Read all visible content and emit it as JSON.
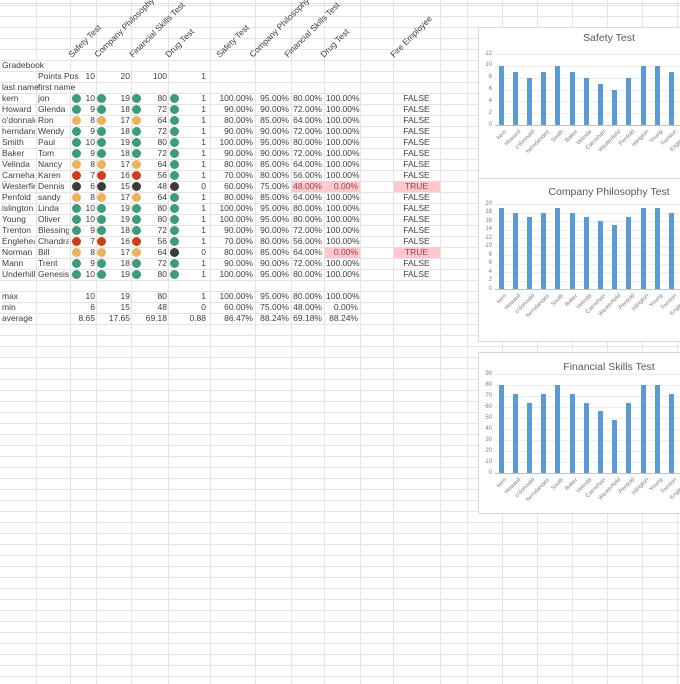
{
  "sheet": {
    "title": "Gradebook",
    "points_row_label": "Points Pos",
    "name_headers": [
      "last name",
      "first name"
    ],
    "test_headers": [
      "Safety Test",
      "Company Philosophy Test",
      "Financial Skills Test",
      "Drug Test"
    ],
    "pct_headers": [
      "Safety Test",
      "Company Philosophy Test",
      "Financial Skills Test",
      "Drug Test"
    ],
    "fire_header": "Fire Employee",
    "points_possible": [
      "10",
      "20",
      "100",
      "1"
    ],
    "rows": [
      {
        "last": "kern",
        "first": "jon",
        "scores": [
          "10",
          "19",
          "80",
          "1"
        ],
        "dots": [
          "green",
          "green",
          "green",
          "green"
        ],
        "pcts": [
          "100.00%",
          "95.00%",
          "80.00%",
          "100.00%"
        ],
        "fire": "FALSE",
        "pct_hl": [],
        "fire_hl": false
      },
      {
        "last": "Howard",
        "first": "Glenda",
        "scores": [
          "9",
          "18",
          "72",
          "1"
        ],
        "dots": [
          "green",
          "green",
          "green",
          "green"
        ],
        "pcts": [
          "90.00%",
          "90.00%",
          "72.00%",
          "100.00%"
        ],
        "fire": "FALSE",
        "pct_hl": [],
        "fire_hl": false
      },
      {
        "last": "o'donnald",
        "first": "Ron",
        "scores": [
          "8",
          "17",
          "64",
          "1"
        ],
        "dots": [
          "amber",
          "amber",
          "amber",
          "green"
        ],
        "pcts": [
          "80.00%",
          "85.00%",
          "64.00%",
          "100.00%"
        ],
        "fire": "FALSE",
        "pct_hl": [],
        "fire_hl": false
      },
      {
        "last": "herndand",
        "first": "Wendy",
        "scores": [
          "9",
          "18",
          "72",
          "1"
        ],
        "dots": [
          "green",
          "green",
          "green",
          "green"
        ],
        "pcts": [
          "90.00%",
          "90.00%",
          "72.00%",
          "100.00%"
        ],
        "fire": "FALSE",
        "pct_hl": [],
        "fire_hl": false
      },
      {
        "last": "Smith",
        "first": "Paul",
        "scores": [
          "10",
          "19",
          "80",
          "1"
        ],
        "dots": [
          "green",
          "green",
          "green",
          "green"
        ],
        "pcts": [
          "100.00%",
          "95.00%",
          "80.00%",
          "100.00%"
        ],
        "fire": "FALSE",
        "pct_hl": [],
        "fire_hl": false
      },
      {
        "last": "Baker",
        "first": "Tom",
        "scores": [
          "9",
          "18",
          "72",
          "1"
        ],
        "dots": [
          "green",
          "green",
          "green",
          "green"
        ],
        "pcts": [
          "90.00%",
          "90.00%",
          "72.00%",
          "100.00%"
        ],
        "fire": "FALSE",
        "pct_hl": [],
        "fire_hl": false
      },
      {
        "last": "Velinda",
        "first": "Nancy",
        "scores": [
          "8",
          "17",
          "64",
          "1"
        ],
        "dots": [
          "amber",
          "amber",
          "amber",
          "green"
        ],
        "pcts": [
          "80.00%",
          "85.00%",
          "64.00%",
          "100.00%"
        ],
        "fire": "FALSE",
        "pct_hl": [],
        "fire_hl": false
      },
      {
        "last": "Carnehan",
        "first": "Karen",
        "scores": [
          "7",
          "16",
          "56",
          "1"
        ],
        "dots": [
          "red",
          "red",
          "red",
          "green"
        ],
        "pcts": [
          "70.00%",
          "80.00%",
          "56.00%",
          "100.00%"
        ],
        "fire": "FALSE",
        "pct_hl": [],
        "fire_hl": false
      },
      {
        "last": "Westerfie",
        "first": "Dennis",
        "scores": [
          "6",
          "15",
          "48",
          "0"
        ],
        "dots": [
          "black",
          "black",
          "black",
          "black"
        ],
        "pcts": [
          "60.00%",
          "75.00%",
          "48.00%",
          "0.00%"
        ],
        "fire": "TRUE",
        "pct_hl": [
          2,
          3
        ],
        "fire_hl": true
      },
      {
        "last": "Penfold",
        "first": "sandy",
        "scores": [
          "8",
          "17",
          "64",
          "1"
        ],
        "dots": [
          "amber",
          "amber",
          "amber",
          "green"
        ],
        "pcts": [
          "80.00%",
          "85.00%",
          "64.00%",
          "100.00%"
        ],
        "fire": "FALSE",
        "pct_hl": [],
        "fire_hl": false
      },
      {
        "last": "islington",
        "first": "Linda",
        "scores": [
          "10",
          "19",
          "80",
          "1"
        ],
        "dots": [
          "green",
          "green",
          "green",
          "green"
        ],
        "pcts": [
          "100.00%",
          "95.00%",
          "80.00%",
          "100.00%"
        ],
        "fire": "FALSE",
        "pct_hl": [],
        "fire_hl": false
      },
      {
        "last": "Young",
        "first": "Oliver",
        "scores": [
          "10",
          "19",
          "80",
          "1"
        ],
        "dots": [
          "green",
          "green",
          "green",
          "green"
        ],
        "pcts": [
          "100.00%",
          "95.00%",
          "80.00%",
          "100.00%"
        ],
        "fire": "FALSE",
        "pct_hl": [],
        "fire_hl": false
      },
      {
        "last": "Trenton",
        "first": "Blessing",
        "scores": [
          "9",
          "18",
          "72",
          "1"
        ],
        "dots": [
          "green",
          "green",
          "green",
          "green"
        ],
        "pcts": [
          "90.00%",
          "90.00%",
          "72.00%",
          "100.00%"
        ],
        "fire": "FALSE",
        "pct_hl": [],
        "fire_hl": false
      },
      {
        "last": "Englehear",
        "first": "Chandra",
        "scores": [
          "7",
          "16",
          "56",
          "1"
        ],
        "dots": [
          "red",
          "red",
          "red",
          "green"
        ],
        "pcts": [
          "70.00%",
          "80.00%",
          "56.00%",
          "100.00%"
        ],
        "fire": "FALSE",
        "pct_hl": [],
        "fire_hl": false
      },
      {
        "last": "Norman",
        "first": "Bill",
        "scores": [
          "8",
          "17",
          "64",
          "0"
        ],
        "dots": [
          "amber",
          "amber",
          "amber",
          "black"
        ],
        "pcts": [
          "80.00%",
          "85.00%",
          "64.00%",
          "0.00%"
        ],
        "fire": "TRUE",
        "pct_hl": [
          3
        ],
        "fire_hl": true
      },
      {
        "last": "Mann",
        "first": "Trent",
        "scores": [
          "9",
          "18",
          "72",
          "1"
        ],
        "dots": [
          "green",
          "green",
          "green",
          "green"
        ],
        "pcts": [
          "90.00%",
          "90.00%",
          "72.00%",
          "100.00%"
        ],
        "fire": "FALSE",
        "pct_hl": [],
        "fire_hl": false
      },
      {
        "last": "Underhill",
        "first": "Genesis",
        "scores": [
          "10",
          "19",
          "80",
          "1"
        ],
        "dots": [
          "green",
          "green",
          "green",
          "green"
        ],
        "pcts": [
          "100.00%",
          "95.00%",
          "80.00%",
          "100.00%"
        ],
        "fire": "FALSE",
        "pct_hl": [],
        "fire_hl": false
      }
    ],
    "summary": [
      {
        "label": "max",
        "scores": [
          "10",
          "19",
          "80",
          "1"
        ],
        "pcts": [
          "100.00%",
          "95.00%",
          "80.00%",
          "100.00%"
        ]
      },
      {
        "label": "min",
        "scores": [
          "6",
          "15",
          "48",
          "0"
        ],
        "pcts": [
          "60.00%",
          "75.00%",
          "48.00%",
          "0.00%"
        ]
      },
      {
        "label": "average",
        "scores": [
          "8.65",
          "17.65",
          "69.18",
          "0.88"
        ],
        "pcts": [
          "86.47%",
          "88.24%",
          "69.18%",
          "88.24%"
        ]
      }
    ]
  },
  "colors": {
    "bar": "#5b9bd5",
    "dot_green": "#3f9b7d",
    "dot_amber": "#eab35c",
    "dot_red": "#cd3e1c",
    "dot_black": "#3b3b3b",
    "highlight_bg": "#ffc7ce",
    "highlight_text": "#9c4048",
    "grid": "#e4e4e4"
  },
  "chart_data": [
    {
      "type": "bar",
      "title": "Safety Test",
      "categories": [
        "kern",
        "Howard",
        "o'donnald",
        "herndandez",
        "Smith",
        "Baker",
        "Velinda",
        "Carnehan",
        "Westerfield",
        "Penfold",
        "islington",
        "Young",
        "Trenton",
        "Engleheart"
      ],
      "values": [
        10,
        9,
        8,
        9,
        10,
        9,
        8,
        7,
        6,
        8,
        10,
        10,
        9,
        7
      ],
      "xlabel": "",
      "ylabel": "",
      "ylim": [
        0,
        12
      ],
      "ytick_step": 2,
      "grid": true,
      "legend": "none"
    },
    {
      "type": "bar",
      "title": "Company Philosophy Test",
      "categories": [
        "kern",
        "Howard",
        "o'donnald",
        "herndandez",
        "Smith",
        "Baker",
        "Velinda",
        "Carnehan",
        "Westerfield",
        "Penfold",
        "islington",
        "Young",
        "Trenton",
        "Engleheart"
      ],
      "values": [
        19,
        18,
        17,
        18,
        19,
        18,
        17,
        16,
        15,
        17,
        19,
        19,
        18,
        16
      ],
      "xlabel": "",
      "ylabel": "",
      "ylim": [
        0,
        20
      ],
      "ytick_step": 2,
      "grid": true,
      "legend": "none"
    },
    {
      "type": "bar",
      "title": "Financial Skills Test",
      "categories": [
        "kern",
        "Howard",
        "o'donnald",
        "herndandez",
        "Smith",
        "Baker",
        "Velinda",
        "Carnehan",
        "Westerfield",
        "Penfold",
        "islington",
        "Young",
        "Trenton",
        "Engleheart"
      ],
      "values": [
        80,
        72,
        64,
        72,
        80,
        72,
        64,
        56,
        48,
        64,
        80,
        80,
        72,
        56
      ],
      "xlabel": "",
      "ylabel": "",
      "ylim": [
        0,
        90
      ],
      "ytick_step": 10,
      "grid": true,
      "legend": "none"
    }
  ]
}
